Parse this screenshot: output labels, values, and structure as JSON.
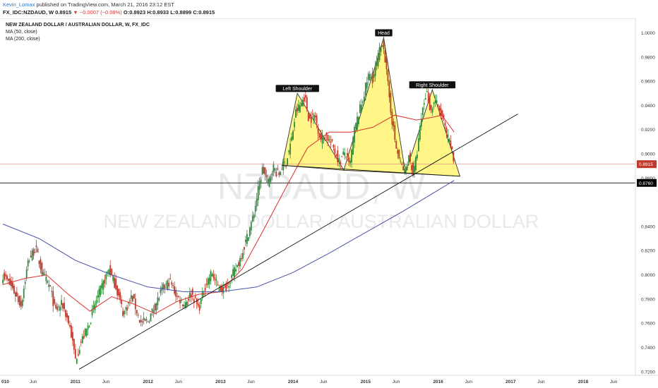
{
  "header": {
    "author": "Kevin_Lomax",
    "published": "published on TradingView.com, March 21, 2016 23:12 EST",
    "symbol": "FX_IDC:NZDAUD, W",
    "last": "0.8915",
    "change": "▼ −0.0007 (−0.08%)",
    "open": "O:0.8923",
    "high": "H:0.8933",
    "low": "L:0.8899",
    "close": "C:0.8915"
  },
  "legend": {
    "title": "NEW ZEALAND DOLLAR / AUSTRALIAN DOLLAR, W, FX_IDC",
    "ma50": "MA (50, close)",
    "ma200": "MA (200, close)"
  },
  "watermark": {
    "ticker": "NZDAUD, W",
    "name": "NEW ZEALAND DOLLAR / AUSTRALIAN DOLLAR"
  },
  "colors": {
    "up": "#2e8b3a",
    "down": "#c0392b",
    "ma50": "#d9302f",
    "ma200": "#4b4fa8",
    "pattern_fill": "#fff57a",
    "last_label": "#c0392b",
    "level_label": "#000000"
  },
  "chart_data": {
    "type": "candlestick",
    "ylim": [
      0.717,
      1.012
    ],
    "yticks": [
      "1.0000",
      "0.9800",
      "0.9600",
      "0.9400",
      "0.9200",
      "0.9000",
      "0.8800",
      "0.8400",
      "0.8200",
      "0.8000",
      "0.7800",
      "0.7600",
      "0.7400",
      "0.7200"
    ],
    "xticks": [
      {
        "label": "010",
        "t": 2010.0
      },
      {
        "label": "Jun",
        "t": 2010.42
      },
      {
        "label": "2011",
        "t": 2011.0
      },
      {
        "label": "Jun",
        "t": 2011.42
      },
      {
        "label": "2012",
        "t": 2012.0
      },
      {
        "label": "Jun",
        "t": 2012.42
      },
      {
        "label": "2013",
        "t": 2013.0
      },
      {
        "label": "Jun",
        "t": 2013.42
      },
      {
        "label": "2014",
        "t": 2014.0
      },
      {
        "label": "Jun",
        "t": 2014.42
      },
      {
        "label": "2015",
        "t": 2015.0
      },
      {
        "label": "Jun",
        "t": 2015.42
      },
      {
        "label": "2016",
        "t": 2016.0
      },
      {
        "label": "Jun",
        "t": 2016.42
      },
      {
        "label": "2017",
        "t": 2017.0
      },
      {
        "label": "Jun",
        "t": 2017.42
      },
      {
        "label": "2018",
        "t": 2018.0
      },
      {
        "label": "Jun",
        "t": 2018.42
      }
    ],
    "price_path": [
      [
        2010.0,
        0.8
      ],
      [
        2010.12,
        0.79
      ],
      [
        2010.25,
        0.775
      ],
      [
        2010.35,
        0.812
      ],
      [
        2010.45,
        0.822
      ],
      [
        2010.55,
        0.8
      ],
      [
        2010.65,
        0.79
      ],
      [
        2010.72,
        0.77
      ],
      [
        2010.82,
        0.776
      ],
      [
        2010.92,
        0.758
      ],
      [
        2011.0,
        0.73
      ],
      [
        2011.08,
        0.745
      ],
      [
        2011.18,
        0.758
      ],
      [
        2011.28,
        0.778
      ],
      [
        2011.38,
        0.792
      ],
      [
        2011.46,
        0.805
      ],
      [
        2011.56,
        0.79
      ],
      [
        2011.66,
        0.768
      ],
      [
        2011.78,
        0.782
      ],
      [
        2011.9,
        0.76
      ],
      [
        2012.0,
        0.762
      ],
      [
        2012.1,
        0.775
      ],
      [
        2012.2,
        0.788
      ],
      [
        2012.3,
        0.795
      ],
      [
        2012.4,
        0.782
      ],
      [
        2012.5,
        0.776
      ],
      [
        2012.6,
        0.785
      ],
      [
        2012.7,
        0.772
      ],
      [
        2012.8,
        0.793
      ],
      [
        2012.88,
        0.802
      ],
      [
        2012.96,
        0.79
      ],
      [
        2013.05,
        0.788
      ],
      [
        2013.15,
        0.798
      ],
      [
        2013.25,
        0.81
      ],
      [
        2013.35,
        0.828
      ],
      [
        2013.45,
        0.848
      ],
      [
        2013.52,
        0.87
      ],
      [
        2013.58,
        0.888
      ],
      [
        2013.66,
        0.875
      ],
      [
        2013.72,
        0.89
      ],
      [
        2013.8,
        0.882
      ],
      [
        2013.86,
        0.892
      ],
      [
        2013.9,
        0.892
      ],
      [
        2013.98,
        0.912
      ],
      [
        2014.04,
        0.935
      ],
      [
        2014.1,
        0.94
      ],
      [
        2014.16,
        0.948
      ],
      [
        2014.22,
        0.928
      ],
      [
        2014.3,
        0.932
      ],
      [
        2014.38,
        0.912
      ],
      [
        2014.46,
        0.915
      ],
      [
        2014.56,
        0.905
      ],
      [
        2014.64,
        0.893
      ],
      [
        2014.72,
        0.902
      ],
      [
        2014.78,
        0.888
      ],
      [
        2014.84,
        0.918
      ],
      [
        2014.9,
        0.932
      ],
      [
        2014.96,
        0.945
      ],
      [
        2015.04,
        0.965
      ],
      [
        2015.1,
        0.962
      ],
      [
        2015.18,
        0.982
      ],
      [
        2015.24,
        0.995
      ],
      [
        2015.3,
        0.96
      ],
      [
        2015.36,
        0.93
      ],
      [
        2015.42,
        0.905
      ],
      [
        2015.48,
        0.892
      ],
      [
        2015.54,
        0.885
      ],
      [
        2015.6,
        0.898
      ],
      [
        2015.66,
        0.882
      ],
      [
        2015.72,
        0.905
      ],
      [
        2015.78,
        0.935
      ],
      [
        2015.84,
        0.952
      ],
      [
        2015.9,
        0.935
      ],
      [
        2015.96,
        0.945
      ],
      [
        2016.0,
        0.938
      ],
      [
        2016.06,
        0.93
      ],
      [
        2016.12,
        0.915
      ],
      [
        2016.18,
        0.905
      ],
      [
        2016.22,
        0.8915
      ]
    ],
    "ma50_path": [
      [
        2010.0,
        0.792
      ],
      [
        2010.3,
        0.797
      ],
      [
        2010.6,
        0.8
      ],
      [
        2010.9,
        0.784
      ],
      [
        2011.2,
        0.77
      ],
      [
        2011.5,
        0.782
      ],
      [
        2011.8,
        0.776
      ],
      [
        2012.1,
        0.768
      ],
      [
        2012.4,
        0.778
      ],
      [
        2012.7,
        0.784
      ],
      [
        2013.0,
        0.786
      ],
      [
        2013.3,
        0.805
      ],
      [
        2013.6,
        0.838
      ],
      [
        2013.9,
        0.872
      ],
      [
        2014.2,
        0.905
      ],
      [
        2014.5,
        0.918
      ],
      [
        2014.8,
        0.918
      ],
      [
        2015.1,
        0.922
      ],
      [
        2015.4,
        0.932
      ],
      [
        2015.7,
        0.928
      ],
      [
        2015.9,
        0.93
      ],
      [
        2016.05,
        0.932
      ],
      [
        2016.22,
        0.918
      ]
    ],
    "ma200_path": [
      [
        2010.0,
        0.842
      ],
      [
        2010.5,
        0.83
      ],
      [
        2011.0,
        0.812
      ],
      [
        2011.5,
        0.8
      ],
      [
        2012.0,
        0.79
      ],
      [
        2012.5,
        0.786
      ],
      [
        2013.0,
        0.786
      ],
      [
        2013.5,
        0.79
      ],
      [
        2014.0,
        0.802
      ],
      [
        2014.5,
        0.818
      ],
      [
        2015.0,
        0.835
      ],
      [
        2015.5,
        0.852
      ],
      [
        2016.0,
        0.87
      ],
      [
        2016.22,
        0.878
      ]
    ],
    "trendline": [
      [
        2011.05,
        0.722
      ],
      [
        2017.1,
        0.933
      ]
    ],
    "neckline": [
      [
        2013.85,
        0.8905
      ],
      [
        2016.3,
        0.8815
      ]
    ],
    "horizontal_level": {
      "value": 0.876,
      "label": "0.8760"
    },
    "last_price": {
      "value": 0.8915,
      "label": "0.8915"
    },
    "patterns": [
      {
        "label": "Left Shoulder",
        "points": [
          [
            2013.85,
            0.8905
          ],
          [
            2014.06,
            0.95
          ],
          [
            2014.7,
            0.8865
          ]
        ]
      },
      {
        "label": "Head",
        "points": [
          [
            2014.7,
            0.8865
          ],
          [
            2015.25,
            0.996
          ],
          [
            2015.55,
            0.884
          ]
        ]
      },
      {
        "label": "Right Shoulder",
        "points": [
          [
            2015.55,
            0.884
          ],
          [
            2015.92,
            0.953
          ],
          [
            2016.3,
            0.8815
          ]
        ]
      }
    ]
  }
}
